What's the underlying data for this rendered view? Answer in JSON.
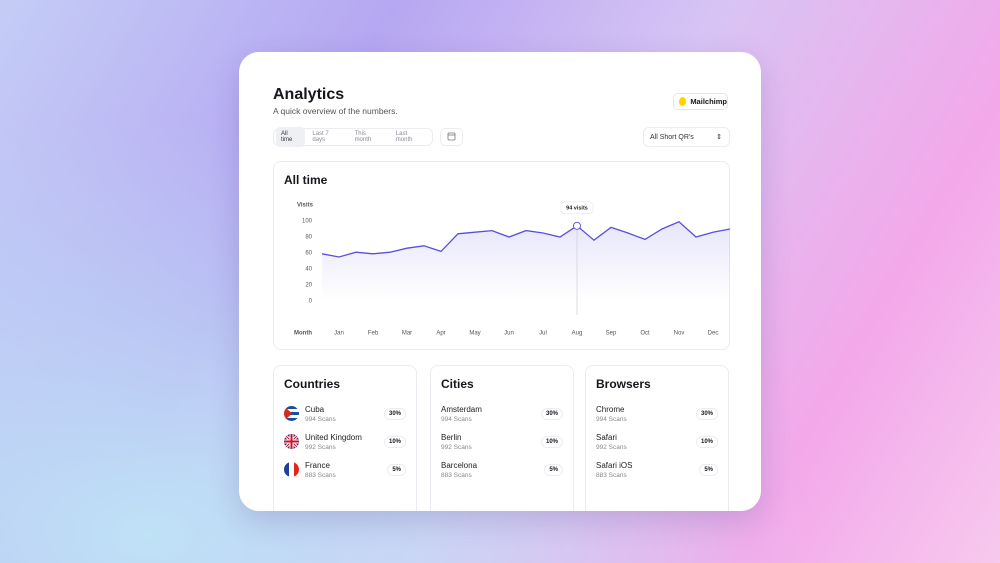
{
  "header": {
    "title": "Analytics",
    "subtitle": "A quick overview of the numbers.",
    "integration": "Mailchimp"
  },
  "filters": {
    "ranges": [
      "All time",
      "Last 7 days",
      "This month",
      "Last month"
    ],
    "dropdown": "All Short QR's"
  },
  "chart_data": {
    "type": "line",
    "title": "All time",
    "y_label": "Visits",
    "x_label": "Month",
    "categories": [
      null,
      "Jan",
      null,
      "Feb",
      null,
      "Mar",
      null,
      "Apr",
      null,
      "May",
      null,
      "Jun",
      null,
      "Jul",
      null,
      "Aug",
      null,
      "Sep",
      null,
      "Oct",
      null,
      "Nov",
      null,
      "Dec",
      null
    ],
    "series": [
      {
        "name": "Visits",
        "color": "#5a50d8",
        "values": [
          59,
          55,
          61,
          59,
          61,
          66,
          69,
          62,
          84,
          86,
          88,
          80,
          88,
          85,
          80,
          94,
          76,
          92,
          85,
          77,
          90,
          99,
          80,
          86,
          90
        ]
      }
    ],
    "ylim": [
      0,
      100
    ],
    "yticks": [
      0,
      20,
      40,
      60,
      80,
      100
    ],
    "tooltip": {
      "label": "94 visits",
      "value": 94
    }
  },
  "panels": [
    {
      "title": "Countries",
      "items": [
        {
          "name": "Cuba",
          "detail": "994 Scans",
          "share": "30%"
        },
        {
          "name": "United Kingdom",
          "detail": "992 Scans",
          "share": "10%"
        },
        {
          "name": "France",
          "detail": "883 Scans",
          "share": "5%"
        }
      ]
    },
    {
      "title": "Cities",
      "items": [
        {
          "name": "Amsterdam",
          "detail": "994 Scans",
          "share": "30%"
        },
        {
          "name": "Berlin",
          "detail": "992 Scans",
          "share": "10%"
        },
        {
          "name": "Barcelona",
          "detail": "883 Scans",
          "share": "5%"
        }
      ]
    },
    {
      "title": "Browsers",
      "items": [
        {
          "name": "Chrome",
          "detail": "994 Scans",
          "share": "30%"
        },
        {
          "name": "Safari",
          "detail": "992 Scans",
          "share": "10%"
        },
        {
          "name": "Safari iOS",
          "detail": "883 Scans",
          "share": "5%"
        }
      ]
    }
  ]
}
